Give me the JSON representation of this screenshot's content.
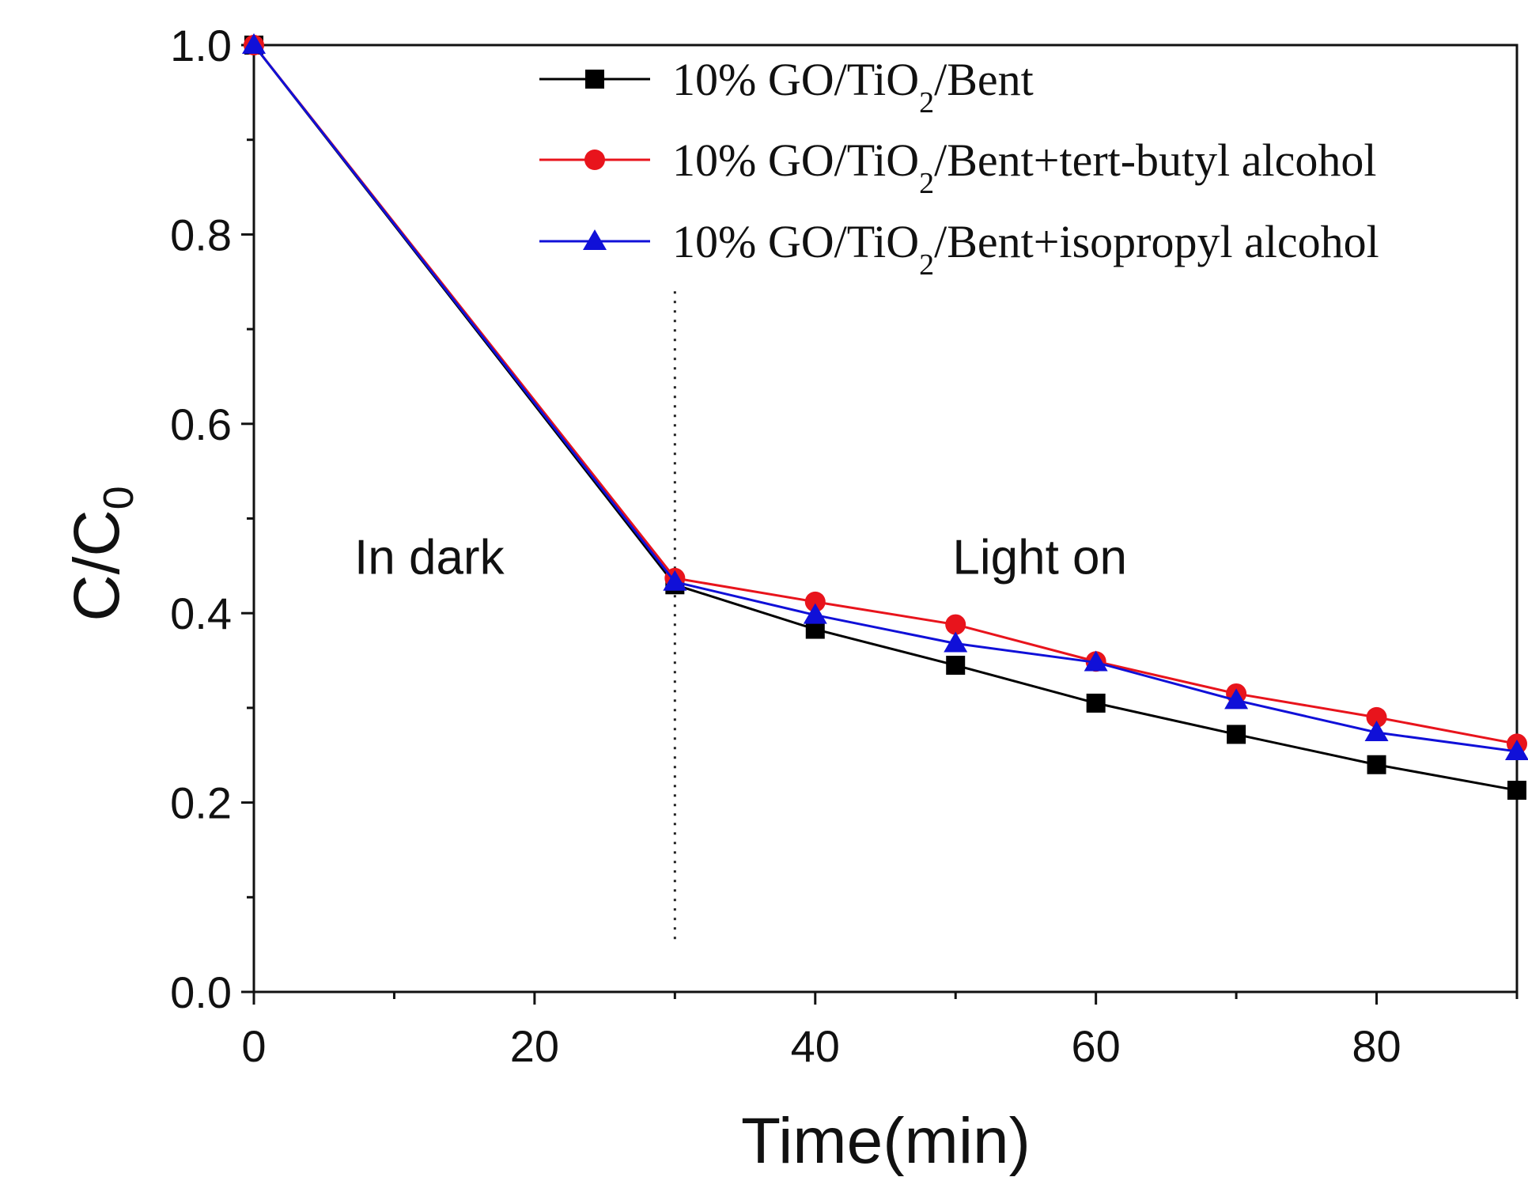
{
  "chart_data": {
    "type": "line",
    "title": "",
    "xlabel": "Time(min)",
    "ylabel": {
      "main": "C/C",
      "sub": "0"
    },
    "xlim": [
      0,
      90
    ],
    "ylim": [
      0.0,
      1.0
    ],
    "x_ticks": [
      0,
      20,
      40,
      60,
      80
    ],
    "x_tick_labels": [
      "0",
      "20",
      "40",
      "60",
      "80"
    ],
    "y_ticks": [
      0.0,
      0.2,
      0.4,
      0.6,
      0.8,
      1.0
    ],
    "y_tick_labels": [
      "0.0",
      "0.2",
      "0.4",
      "0.6",
      "0.8",
      "1.0"
    ],
    "grid": false,
    "legend_position": "top-right",
    "divider_x": 30,
    "annotations": [
      {
        "text": "In dark",
        "x": 12.5,
        "y": 0.46
      },
      {
        "text": "Light on",
        "x": 56,
        "y": 0.46
      }
    ],
    "x": [
      0,
      30,
      40,
      50,
      60,
      70,
      80,
      90
    ],
    "series": [
      {
        "name": "10% GO/TiO2/Bent",
        "label_parts": [
          "10% GO/TiO",
          "2",
          "/Bent"
        ],
        "color": "#000000",
        "marker": "square",
        "values": [
          1.0,
          0.43,
          0.383,
          0.345,
          0.305,
          0.272,
          0.24,
          0.213
        ]
      },
      {
        "name": "10% GO/TiO2/Bent+tert-butyl alcohol",
        "label_parts": [
          "10% GO/TiO",
          "2",
          "/Bent+tert-butyl alcohol"
        ],
        "color": "#e8141c",
        "marker": "circle",
        "values": [
          1.0,
          0.437,
          0.412,
          0.388,
          0.349,
          0.315,
          0.29,
          0.262
        ]
      },
      {
        "name": "10% GO/TiO2/Bent+isopropyl alcohol",
        "label_parts": [
          "10% GO/TiO",
          "2",
          "/Bent+isopropyl alcohol"
        ],
        "color": "#1010d8",
        "marker": "triangle",
        "values": [
          1.0,
          0.433,
          0.398,
          0.368,
          0.348,
          0.308,
          0.274,
          0.254
        ]
      }
    ]
  }
}
